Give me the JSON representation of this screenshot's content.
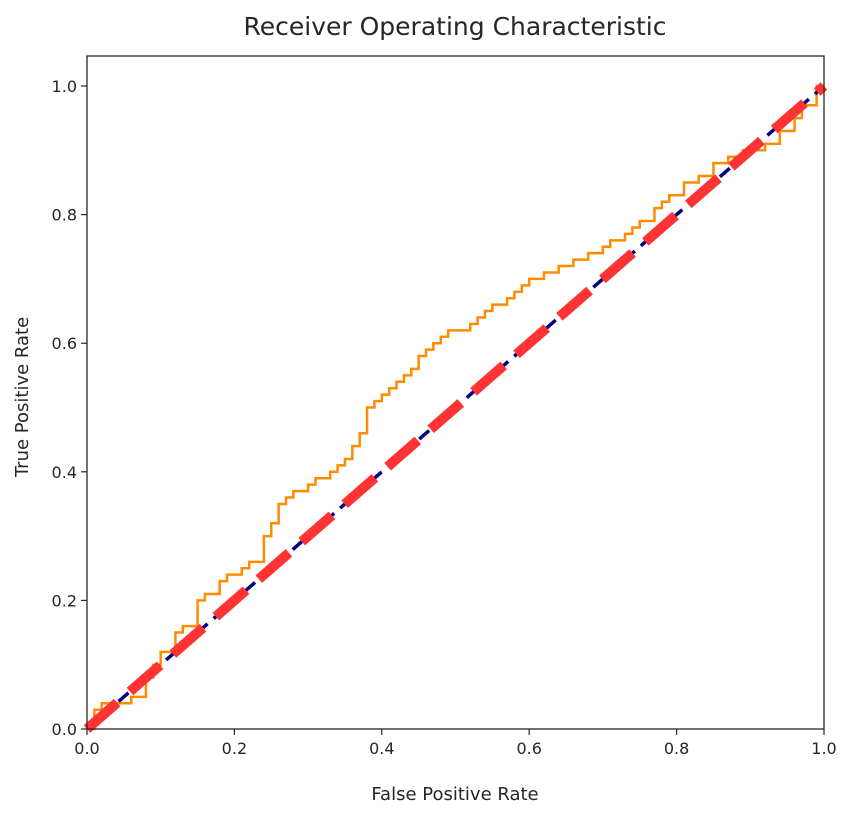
{
  "chart_data": {
    "type": "line",
    "title": "Receiver Operating Characteristic",
    "xlabel": "False Positive Rate",
    "ylabel": "True Positive Rate",
    "xlim": [
      0,
      1
    ],
    "ylim": [
      0,
      1
    ],
    "xticks": [
      "0.0",
      "0.2",
      "0.4",
      "0.6",
      "0.8",
      "1.0"
    ],
    "yticks": [
      "0.0",
      "0.2",
      "0.4",
      "0.6",
      "0.8",
      "1.0"
    ],
    "grid": false,
    "series": [
      {
        "style": "step",
        "color": "#ff8c00",
        "x": [
          0.0,
          0.01,
          0.02,
          0.04,
          0.06,
          0.08,
          0.09,
          0.1,
          0.11,
          0.12,
          0.13,
          0.15,
          0.15,
          0.16,
          0.18,
          0.19,
          0.21,
          0.22,
          0.24,
          0.24,
          0.25,
          0.26,
          0.27,
          0.28,
          0.3,
          0.31,
          0.33,
          0.34,
          0.35,
          0.36,
          0.37,
          0.38,
          0.38,
          0.39,
          0.4,
          0.41,
          0.42,
          0.43,
          0.44,
          0.45,
          0.46,
          0.47,
          0.48,
          0.49,
          0.5,
          0.52,
          0.53,
          0.54,
          0.55,
          0.57,
          0.58,
          0.59,
          0.6,
          0.62,
          0.63,
          0.64,
          0.66,
          0.68,
          0.7,
          0.71,
          0.72,
          0.73,
          0.74,
          0.75,
          0.77,
          0.78,
          0.79,
          0.81,
          0.83,
          0.85,
          0.87,
          0.89,
          0.9,
          0.92,
          0.94,
          0.96,
          0.97,
          0.99,
          1.0
        ],
        "y": [
          0.0,
          0.03,
          0.04,
          0.04,
          0.05,
          0.08,
          0.1,
          0.12,
          0.12,
          0.15,
          0.16,
          0.16,
          0.2,
          0.21,
          0.23,
          0.24,
          0.25,
          0.26,
          0.27,
          0.3,
          0.32,
          0.35,
          0.36,
          0.37,
          0.38,
          0.39,
          0.4,
          0.41,
          0.42,
          0.44,
          0.46,
          0.48,
          0.5,
          0.51,
          0.52,
          0.53,
          0.54,
          0.55,
          0.56,
          0.58,
          0.59,
          0.6,
          0.61,
          0.62,
          0.62,
          0.63,
          0.64,
          0.65,
          0.66,
          0.67,
          0.68,
          0.69,
          0.7,
          0.71,
          0.71,
          0.72,
          0.73,
          0.74,
          0.75,
          0.76,
          0.76,
          0.77,
          0.78,
          0.79,
          0.81,
          0.82,
          0.83,
          0.85,
          0.86,
          0.88,
          0.89,
          0.9,
          0.9,
          0.91,
          0.93,
          0.95,
          0.97,
          1.0,
          1.0
        ]
      },
      {
        "style": "dashed",
        "color": "#000080",
        "x": [
          0,
          1
        ],
        "y": [
          0,
          1
        ]
      },
      {
        "style": "dashed",
        "color": "#ff3333",
        "x": [
          0,
          1
        ],
        "y": [
          0,
          1
        ]
      }
    ]
  }
}
